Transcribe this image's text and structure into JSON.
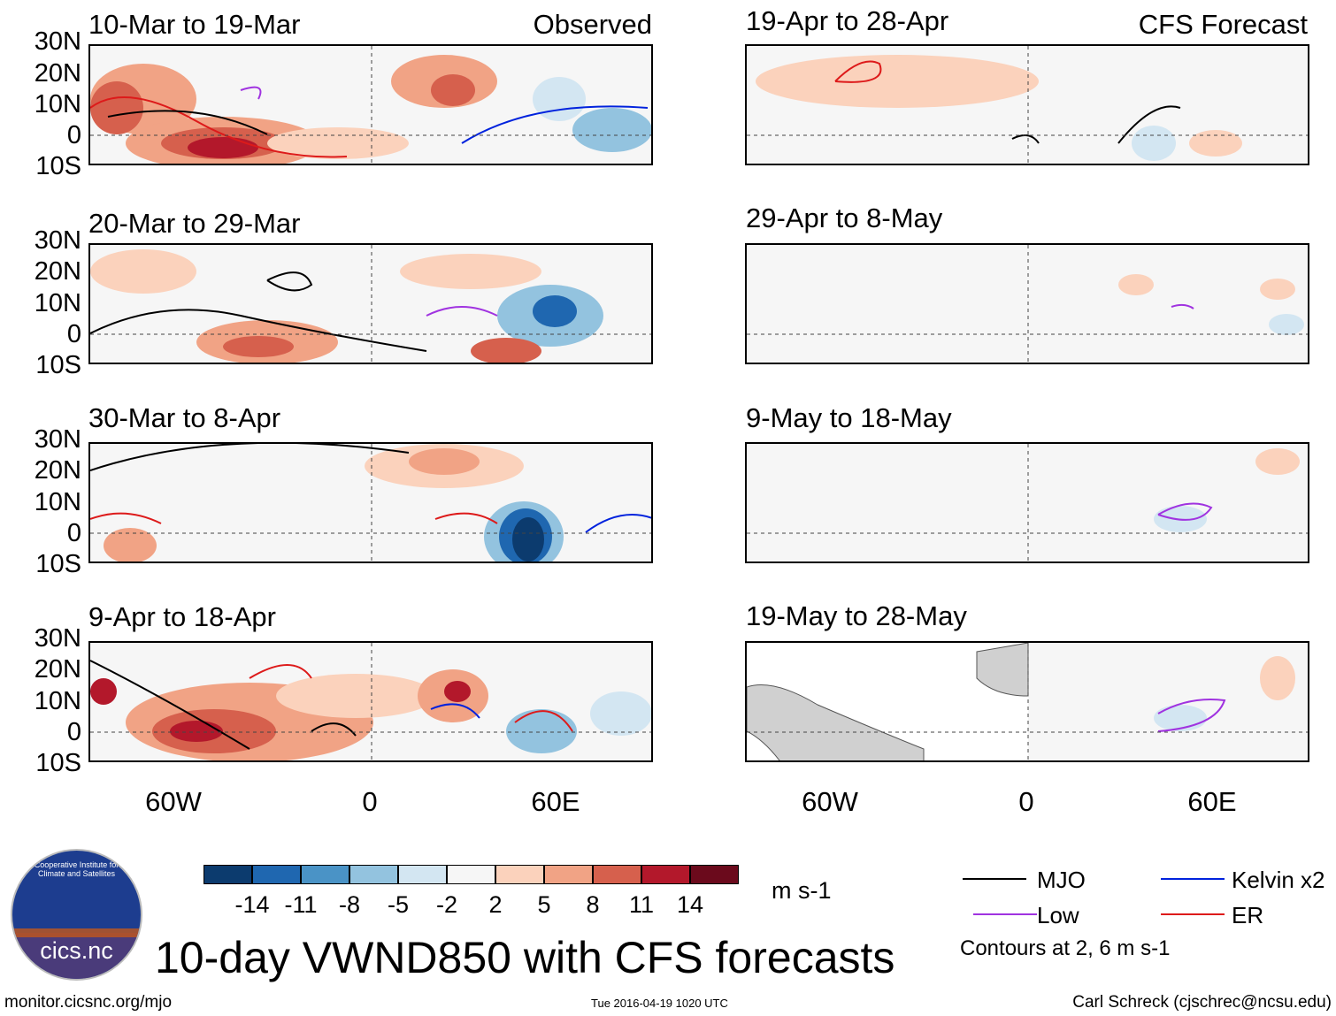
{
  "panels_left": [
    {
      "title": "10-Mar to 19-Mar",
      "corner": "Observed"
    },
    {
      "title": "20-Mar to 29-Mar",
      "corner": ""
    },
    {
      "title": "30-Mar to 8-Apr",
      "corner": ""
    },
    {
      "title": "9-Apr to 18-Apr",
      "corner": ""
    }
  ],
  "panels_right": [
    {
      "title": "19-Apr to 28-Apr",
      "corner": "CFS Forecast"
    },
    {
      "title": "29-Apr to 8-May",
      "corner": ""
    },
    {
      "title": "9-May to 18-May",
      "corner": ""
    },
    {
      "title": "19-May to 28-May",
      "corner": ""
    }
  ],
  "lat_labels": [
    "30N",
    "20N",
    "10N",
    "0",
    "10S"
  ],
  "lon_labels": [
    "60W",
    "0",
    "60E"
  ],
  "colorbar": {
    "ticks": [
      "-14",
      "-11",
      "-8",
      "-5",
      "-2",
      "2",
      "5",
      "8",
      "11",
      "14"
    ],
    "colors": [
      "#0c3b6e",
      "#1f67b0",
      "#4a93c6",
      "#93c3df",
      "#d3e6f2",
      "#f6f6f6",
      "#fbd2bc",
      "#f1a385",
      "#d6604d",
      "#b3182b",
      "#6b0a1c"
    ],
    "units": "m s-1"
  },
  "legend": {
    "items": [
      {
        "label": "MJO",
        "color": "#000000"
      },
      {
        "label": "Kelvin x2",
        "color": "#0022dd"
      },
      {
        "label": "Low",
        "color": "#a033e0"
      },
      {
        "label": "ER",
        "color": "#dd1a1a"
      }
    ],
    "note": "Contours at 2, 6 m s-1"
  },
  "main_title": "10-day VWND850 with CFS forecasts",
  "logo_text": "cics.nc",
  "logo_ring_text": "Cooperative Institute for Climate and Satellites",
  "footer": {
    "left": "monitor.cicsnc.org/mjo",
    "center": "Tue 2016-04-19 1020 UTC",
    "right": "Carl Schreck (cjschrec@ncsu.edu)"
  }
}
